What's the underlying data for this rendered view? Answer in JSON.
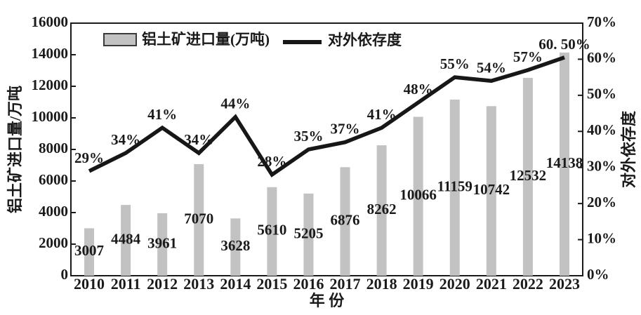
{
  "figure": {
    "background": "#ffffff",
    "frame_color": "#1a1a1a"
  },
  "legend": {
    "items": [
      {
        "type": "bar",
        "label": "铝土矿进口量(万吨)",
        "swatch_fill": "#c2c2c2",
        "swatch_border": "#3a3a3a"
      },
      {
        "type": "line",
        "label": "对外依存度",
        "color": "#171717"
      }
    ]
  },
  "chart_data": {
    "type": "bar",
    "subtype": "bar+line combo, dual axis",
    "title": "",
    "categories": [
      "2010",
      "2011",
      "2012",
      "2013",
      "2014",
      "2015",
      "2016",
      "2017",
      "2018",
      "2019",
      "2020",
      "2021",
      "2022",
      "2023"
    ],
    "series": [
      {
        "name": "铝土矿进口量(万吨)",
        "type": "bar",
        "axis": "left",
        "color": "#c2c2c2",
        "values": [
          3007,
          4484,
          3961,
          7070,
          3628,
          5610,
          5205,
          6876,
          8262,
          10066,
          11159,
          10742,
          12532,
          14138
        ],
        "labels": [
          "3007",
          "4484",
          "3961",
          "7070",
          "3628",
          "5610",
          "5205",
          "6876",
          "8262",
          "10066",
          "11159",
          "10742",
          "12532",
          "14138"
        ]
      },
      {
        "name": "对外依存度",
        "type": "line",
        "axis": "right",
        "color": "#171717",
        "values": [
          29,
          34,
          41,
          34,
          44,
          28,
          35,
          37,
          41,
          48,
          55,
          54,
          57,
          60.5
        ],
        "labels": [
          "29%",
          "34%",
          "41%",
          "34%",
          "44%",
          "28%",
          "35%",
          "37%",
          "41%",
          "48%",
          "55%",
          "54%",
          "57%",
          "60. 50%"
        ]
      }
    ],
    "left_axis": {
      "title": "铝土矿进口量/万吨",
      "min": 0,
      "max": 16000,
      "step": 2000,
      "tick_labels": [
        "0",
        "2000",
        "4000",
        "6000",
        "8000",
        "10000",
        "12000",
        "14000",
        "16000"
      ]
    },
    "right_axis": {
      "title": "对外依存度",
      "min": 0,
      "max": 70,
      "step": 10,
      "tick_labels": [
        "0%",
        "10%",
        "20%",
        "30%",
        "40%",
        "50%",
        "60%",
        "70%"
      ]
    },
    "x_axis": {
      "title": "年 份"
    },
    "grid": false,
    "legend_position": "inside-top"
  }
}
